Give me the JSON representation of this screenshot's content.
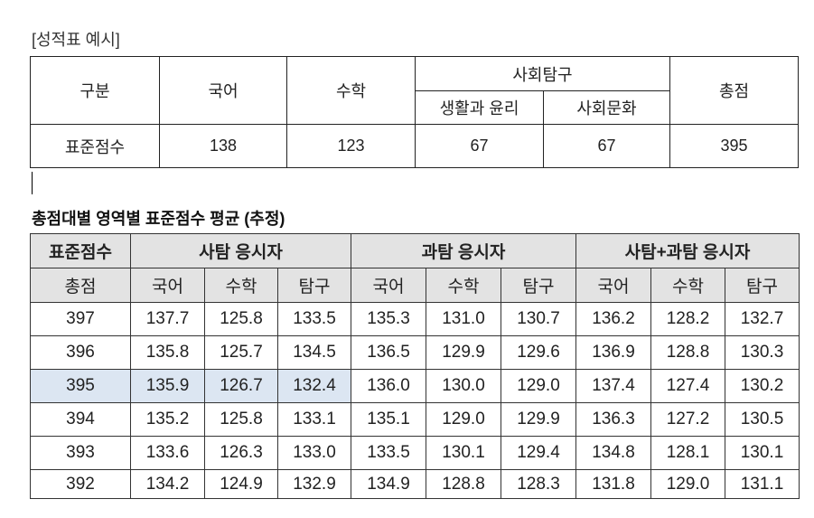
{
  "caption": "[성적표 예시]",
  "report_table": {
    "header": [
      "구분",
      "국어",
      "수학",
      "사회탐구",
      "총점"
    ],
    "subheader": [
      "생활과 윤리",
      "사회문화"
    ],
    "rows": [
      [
        "표준점수",
        "138",
        "123",
        "67",
        "67",
        "395"
      ]
    ]
  },
  "title": "총점대별 영역별 표준점수 평균 (추정)",
  "average_table": {
    "header": [
      "표준점수",
      "사탐 응시자",
      "과탐 응시자",
      "사탐+과탐 응시자"
    ],
    "subheader": [
      "총점",
      "국어",
      "수학",
      "탐구",
      "국어",
      "수학",
      "탐구",
      "국어",
      "수학",
      "탐구"
    ],
    "rows": [
      [
        "397",
        "137.7",
        "125.8",
        "133.5",
        "135.3",
        "131.0",
        "130.7",
        "136.2",
        "128.2",
        "132.7"
      ],
      [
        "396",
        "135.8",
        "125.7",
        "134.5",
        "136.5",
        "129.9",
        "129.6",
        "136.9",
        "128.8",
        "130.3"
      ],
      [
        "395",
        "135.9",
        "126.7",
        "132.4",
        "136.0",
        "130.0",
        "129.0",
        "137.4",
        "127.4",
        "130.2"
      ],
      [
        "394",
        "135.2",
        "125.8",
        "133.1",
        "135.1",
        "129.0",
        "129.9",
        "136.3",
        "127.2",
        "130.5"
      ],
      [
        "393",
        "133.6",
        "126.3",
        "133.0",
        "133.5",
        "130.1",
        "129.4",
        "134.8",
        "128.1",
        "130.1"
      ],
      [
        "392",
        "134.2",
        "124.9",
        "132.9",
        "134.9",
        "128.8",
        "128.3",
        "131.8",
        "129.0",
        "131.1"
      ]
    ]
  }
}
